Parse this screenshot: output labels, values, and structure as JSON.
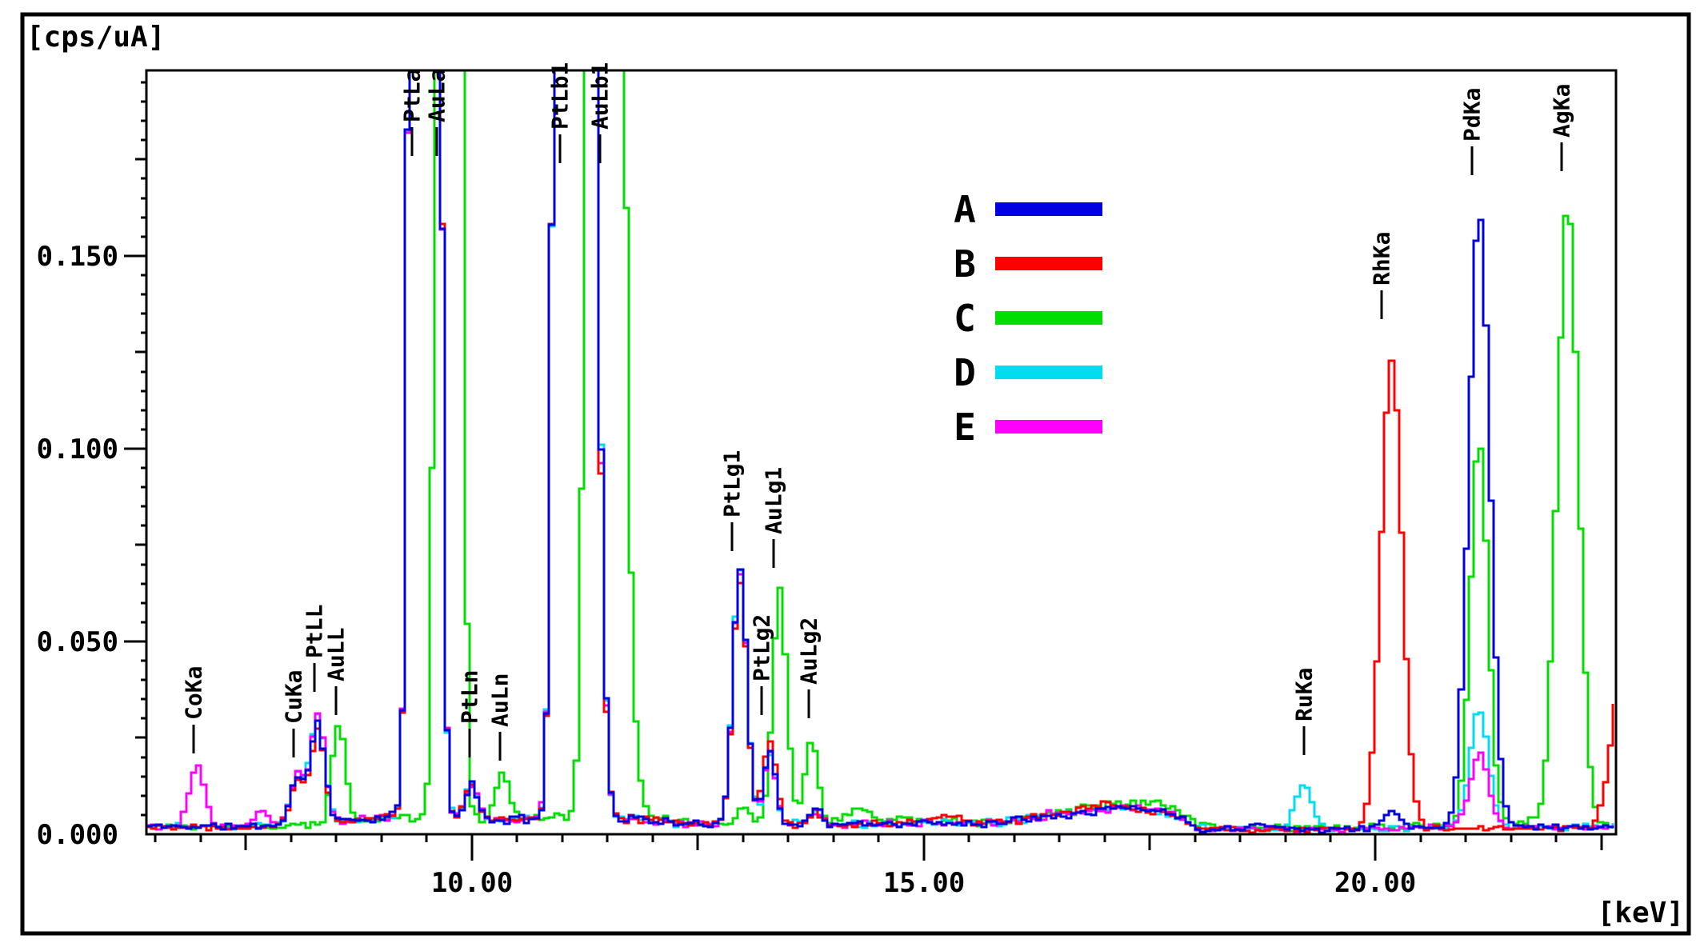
{
  "figure": {
    "y_unit_label": "[cps/uA]",
    "x_unit_label": "[keV]"
  },
  "chart_data": {
    "type": "line",
    "title": "",
    "xlabel": "[keV]",
    "ylabel": "[cps/uA]",
    "x_axis": {
      "min": 6.4,
      "max": 22.66,
      "unit": "[keV]",
      "major_ticks": [
        {
          "v": 10,
          "text": "10.00"
        },
        {
          "v": 15,
          "text": "15.00"
        },
        {
          "v": 20,
          "text": "20.00"
        }
      ],
      "mid_ticks": [
        7.5,
        12.5,
        17.5,
        22.5
      ],
      "minor_tick_step": 0.5,
      "grid": false
    },
    "y_axis": {
      "min": 0,
      "max": 0.1981,
      "unit": "[cps/uA]",
      "major_ticks": [
        {
          "v": 0.0,
          "text": "0.000"
        },
        {
          "v": 0.05,
          "text": "0.050"
        },
        {
          "v": 0.1,
          "text": "0.100"
        },
        {
          "v": 0.15,
          "text": "0.150"
        }
      ],
      "mid_ticks": [
        0.025,
        0.075,
        0.125,
        0.175
      ],
      "minor_tick_step": 0.005,
      "grid": false
    },
    "legend": {
      "position": "upper-center-right",
      "items": [
        {
          "name": "A",
          "color": "#0000e0"
        },
        {
          "name": "B",
          "color": "#ff0000"
        },
        {
          "name": "C",
          "color": "#00dd00"
        },
        {
          "name": "D",
          "color": "#00ddee"
        },
        {
          "name": "E",
          "color": "#ff00ff"
        }
      ]
    },
    "peak_labels": [
      {
        "text": "CoKa",
        "kev": 6.92,
        "stem_bottom": 0.021
      },
      {
        "text": "CuKa",
        "kev": 8.03,
        "stem_bottom": 0.02
      },
      {
        "text": "PtLL",
        "kev": 8.26,
        "stem_bottom": 0.037
      },
      {
        "text": "AuLL",
        "kev": 8.5,
        "stem_bottom": 0.031
      },
      {
        "text": "PtLa",
        "kev": 9.34,
        "stem_bottom": 0.176
      },
      {
        "text": "AuLa",
        "kev": 9.61,
        "stem_bottom": 0.176
      },
      {
        "text": "PtLn",
        "kev": 9.98,
        "stem_bottom": 0.02
      },
      {
        "text": "AuLn",
        "kev": 10.31,
        "stem_bottom": 0.019
      },
      {
        "text": "PtLb1",
        "kev": 10.98,
        "stem_bottom": 0.174
      },
      {
        "text": "AuLb1",
        "kev": 11.42,
        "stem_bottom": 0.174
      },
      {
        "text": "PtLg1",
        "kev": 12.88,
        "stem_bottom": 0.0735
      },
      {
        "text": "PtLg2",
        "kev": 13.21,
        "stem_bottom": 0.031
      },
      {
        "text": "AuLg1",
        "kev": 13.34,
        "stem_bottom": 0.069
      },
      {
        "text": "AuLg2",
        "kev": 13.73,
        "stem_bottom": 0.03
      },
      {
        "text": "RuKa",
        "kev": 19.21,
        "stem_bottom": 0.0205
      },
      {
        "text": "RhKa",
        "kev": 20.07,
        "stem_bottom": 0.1335
      },
      {
        "text": "PdKa",
        "kev": 21.07,
        "stem_bottom": 0.171
      },
      {
        "text": "AgKa",
        "kev": 22.06,
        "stem_bottom": 0.172
      }
    ],
    "sample_step_kev": 0.055,
    "draw_order": [
      "C",
      "D",
      "E",
      "B",
      "A"
    ],
    "series": [
      {
        "name": "A",
        "color": "#0000e0",
        "seed": 11,
        "noise": 0.0011,
        "baseline": [
          [
            6.4,
            0.002
          ],
          [
            7.6,
            0.002
          ],
          [
            8.6,
            0.0035
          ],
          [
            9.1,
            0.0045
          ],
          [
            10.2,
            0.0035
          ],
          [
            10.6,
            0.004
          ],
          [
            11.85,
            0.004
          ],
          [
            12.3,
            0.0025
          ],
          [
            13.0,
            0.003
          ],
          [
            13.95,
            0.0025
          ],
          [
            15.8,
            0.003
          ],
          [
            16.3,
            0.0048
          ],
          [
            17.7,
            0.0048
          ],
          [
            18.0,
            0.0013
          ],
          [
            19.6,
            0.0013
          ],
          [
            20.6,
            0.0018
          ],
          [
            22.66,
            0.002
          ]
        ],
        "peaks": [
          [
            8.05,
            0.012,
            0.08
          ],
          [
            8.27,
            0.026,
            0.075
          ],
          [
            9.45,
            3.0,
            0.08
          ],
          [
            9.97,
            0.009,
            0.07
          ],
          [
            11.08,
            3.5,
            0.09
          ],
          [
            11.27,
            0.28,
            0.09
          ],
          [
            12.94,
            0.066,
            0.075
          ],
          [
            13.27,
            0.019,
            0.065
          ],
          [
            13.78,
            0.004,
            0.06
          ],
          [
            17.2,
            0.002,
            0.4
          ],
          [
            18.7,
            0.002,
            0.1
          ],
          [
            20.15,
            0.004,
            0.1
          ],
          [
            21.12,
            0.16,
            0.115
          ]
        ]
      },
      {
        "name": "B",
        "color": "#ff0000",
        "seed": 22,
        "noise": 0.0011,
        "baseline": [
          [
            6.4,
            0.002
          ],
          [
            7.6,
            0.002
          ],
          [
            8.6,
            0.0035
          ],
          [
            9.1,
            0.0045
          ],
          [
            10.2,
            0.0035
          ],
          [
            10.6,
            0.004
          ],
          [
            11.85,
            0.004
          ],
          [
            12.3,
            0.0025
          ],
          [
            13.0,
            0.003
          ],
          [
            13.95,
            0.0025
          ],
          [
            15.8,
            0.003
          ],
          [
            16.3,
            0.0048
          ],
          [
            17.7,
            0.0048
          ],
          [
            18.0,
            0.0013
          ],
          [
            19.6,
            0.0013
          ],
          [
            20.6,
            0.0015
          ],
          [
            22.66,
            0.0015
          ]
        ],
        "peaks": [
          [
            8.05,
            0.011,
            0.08
          ],
          [
            8.27,
            0.024,
            0.075
          ],
          [
            9.45,
            3.0,
            0.08
          ],
          [
            9.97,
            0.009,
            0.07
          ],
          [
            11.08,
            3.5,
            0.09
          ],
          [
            11.27,
            0.26,
            0.09
          ],
          [
            12.94,
            0.063,
            0.075
          ],
          [
            13.27,
            0.022,
            0.07
          ],
          [
            13.78,
            0.003,
            0.06
          ],
          [
            15.2,
            0.002,
            0.15
          ],
          [
            17.1,
            0.0025,
            0.4
          ],
          [
            20.15,
            0.121,
            0.115
          ],
          [
            22.72,
            0.042,
            0.13
          ]
        ]
      },
      {
        "name": "C",
        "color": "#00dd00",
        "seed": 33,
        "noise": 0.0011,
        "baseline": [
          [
            6.4,
            0.0018
          ],
          [
            8.1,
            0.002
          ],
          [
            8.8,
            0.0035
          ],
          [
            9.4,
            0.0045
          ],
          [
            10.1,
            0.004
          ],
          [
            10.8,
            0.0045
          ],
          [
            11.9,
            0.005
          ],
          [
            12.5,
            0.0025
          ],
          [
            13.1,
            0.0028
          ],
          [
            14.0,
            0.003
          ],
          [
            14.4,
            0.004
          ],
          [
            15.8,
            0.003
          ],
          [
            16.4,
            0.005
          ],
          [
            17.7,
            0.005
          ],
          [
            18.05,
            0.0015
          ],
          [
            20.5,
            0.002
          ],
          [
            21.6,
            0.0035
          ],
          [
            22.66,
            0.002
          ]
        ],
        "peaks": [
          [
            8.5,
            0.025,
            0.075
          ],
          [
            9.72,
            3.0,
            0.07
          ],
          [
            10.31,
            0.012,
            0.07
          ],
          [
            11.43,
            3.5,
            0.09
          ],
          [
            11.62,
            0.1,
            0.1
          ],
          [
            12.98,
            0.004,
            0.07
          ],
          [
            13.38,
            0.061,
            0.075
          ],
          [
            13.73,
            0.021,
            0.07
          ],
          [
            14.25,
            0.0025,
            0.12
          ],
          [
            17.3,
            0.003,
            0.45
          ],
          [
            21.12,
            0.1,
            0.095
          ],
          [
            22.1,
            0.161,
            0.115
          ]
        ]
      },
      {
        "name": "D",
        "color": "#00ddee",
        "seed": 44,
        "noise": 0.0011,
        "baseline": [
          [
            6.4,
            0.002
          ],
          [
            7.6,
            0.002
          ],
          [
            8.6,
            0.0035
          ],
          [
            9.1,
            0.0045
          ],
          [
            10.2,
            0.0035
          ],
          [
            10.6,
            0.004
          ],
          [
            11.85,
            0.004
          ],
          [
            12.3,
            0.0025
          ],
          [
            13.0,
            0.003
          ],
          [
            13.95,
            0.0025
          ],
          [
            15.8,
            0.003
          ],
          [
            16.3,
            0.0048
          ],
          [
            17.7,
            0.0048
          ],
          [
            18.0,
            0.0013
          ],
          [
            19.6,
            0.0013
          ],
          [
            20.6,
            0.0018
          ],
          [
            22.66,
            0.002
          ]
        ],
        "peaks": [
          [
            8.05,
            0.013,
            0.08
          ],
          [
            8.27,
            0.028,
            0.075
          ],
          [
            9.45,
            3.0,
            0.08
          ],
          [
            9.97,
            0.01,
            0.07
          ],
          [
            11.08,
            3.5,
            0.09
          ],
          [
            11.27,
            0.28,
            0.09
          ],
          [
            12.94,
            0.066,
            0.075
          ],
          [
            13.27,
            0.018,
            0.065
          ],
          [
            13.78,
            0.004,
            0.06
          ],
          [
            17.2,
            0.002,
            0.4
          ],
          [
            19.18,
            0.0115,
            0.095
          ],
          [
            21.12,
            0.031,
            0.1
          ]
        ]
      },
      {
        "name": "E",
        "color": "#ff00ff",
        "seed": 55,
        "noise": 0.0011,
        "baseline": [
          [
            6.4,
            0.002
          ],
          [
            7.6,
            0.002
          ],
          [
            8.6,
            0.0035
          ],
          [
            9.1,
            0.0045
          ],
          [
            10.2,
            0.0035
          ],
          [
            10.6,
            0.004
          ],
          [
            11.85,
            0.004
          ],
          [
            12.3,
            0.0025
          ],
          [
            13.0,
            0.003
          ],
          [
            13.95,
            0.0025
          ],
          [
            15.8,
            0.003
          ],
          [
            16.3,
            0.0048
          ],
          [
            17.7,
            0.0048
          ],
          [
            18.0,
            0.0013
          ],
          [
            19.6,
            0.0013
          ],
          [
            20.6,
            0.0018
          ],
          [
            22.66,
            0.002
          ]
        ],
        "peaks": [
          [
            6.93,
            0.016,
            0.085
          ],
          [
            7.65,
            0.004,
            0.07
          ],
          [
            8.05,
            0.013,
            0.08
          ],
          [
            8.27,
            0.028,
            0.075
          ],
          [
            9.45,
            3.0,
            0.08
          ],
          [
            9.97,
            0.009,
            0.07
          ],
          [
            11.08,
            3.5,
            0.09
          ],
          [
            11.27,
            0.27,
            0.09
          ],
          [
            12.94,
            0.064,
            0.075
          ],
          [
            13.27,
            0.018,
            0.065
          ],
          [
            13.78,
            0.003,
            0.06
          ],
          [
            17.2,
            0.002,
            0.4
          ],
          [
            21.12,
            0.019,
            0.1
          ]
        ]
      }
    ]
  }
}
